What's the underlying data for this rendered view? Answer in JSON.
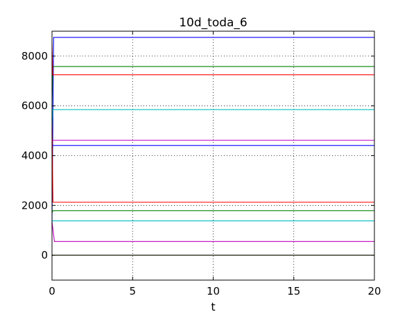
{
  "chart_data": {
    "type": "line",
    "title": "10d_toda_6",
    "xlabel": "t",
    "ylabel": "",
    "xlim": [
      0,
      20
    ],
    "ylim": [
      -1000,
      9000
    ],
    "xticks": [
      0,
      5,
      10,
      15,
      20
    ],
    "yticks": [
      0,
      2000,
      4000,
      6000,
      8000
    ],
    "grid": true,
    "series": [
      {
        "color": "#0000ff",
        "x": [
          0,
          0.1,
          20
        ],
        "values": [
          1300,
          8750,
          8750
        ]
      },
      {
        "color": "#008000",
        "x": [
          0,
          0.05,
          20
        ],
        "values": [
          6000,
          7580,
          7580
        ]
      },
      {
        "color": "#ff0000",
        "x": [
          0,
          0.05,
          20
        ],
        "values": [
          8500,
          7250,
          7250
        ]
      },
      {
        "color": "#00bfbf",
        "x": [
          0,
          0.05,
          20
        ],
        "values": [
          5000,
          5850,
          5850
        ]
      },
      {
        "color": "#bf00bf",
        "x": [
          0,
          0.05,
          20
        ],
        "values": [
          4300,
          4620,
          4620
        ]
      },
      {
        "color": "#0000ff",
        "x": [
          0,
          0.05,
          20
        ],
        "values": [
          4500,
          4410,
          4410
        ]
      },
      {
        "color": "#ff0000",
        "x": [
          0,
          0.06,
          20
        ],
        "values": [
          5500,
          2130,
          2130
        ]
      },
      {
        "color": "#008000",
        "x": [
          0,
          0.05,
          20
        ],
        "values": [
          1700,
          1790,
          1790
        ]
      },
      {
        "color": "#00bfbf",
        "x": [
          0,
          0.05,
          20
        ],
        "values": [
          1400,
          1380,
          1380
        ]
      },
      {
        "color": "#bf00bf",
        "x": [
          0,
          0.15,
          20
        ],
        "values": [
          1350,
          550,
          550
        ]
      },
      {
        "color": "#bfbf00",
        "x": [
          0,
          0.05,
          20
        ],
        "values": [
          40,
          0,
          0
        ]
      },
      {
        "color": "#000000",
        "x": [
          0,
          0.05,
          20
        ],
        "values": [
          -30,
          0,
          0
        ]
      }
    ]
  }
}
